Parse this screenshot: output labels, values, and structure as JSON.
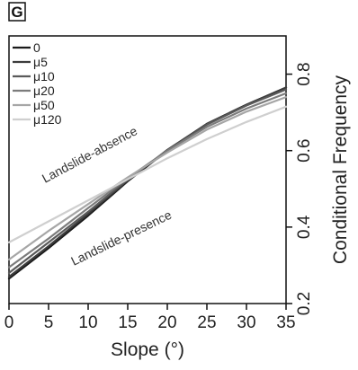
{
  "chart_data": {
    "type": "line",
    "panel_label": "G",
    "xlabel": "Slope (°)",
    "ylabel": "Conditional Frequency",
    "xlim": [
      0,
      35
    ],
    "ylim": [
      0.2,
      0.9
    ],
    "xticks": [
      0,
      5,
      10,
      15,
      20,
      25,
      30,
      35
    ],
    "yticks": [
      0.2,
      0.4,
      0.6,
      0.8
    ],
    "ytick_labels": [
      "0.2",
      "0.4",
      "0.6",
      "0.8"
    ],
    "grid": false,
    "legend_position": "top-left",
    "annotations": [
      "Landslide-absence",
      "Landslide-presence"
    ],
    "series": [
      {
        "name": "0",
        "color": "#1a1a1a",
        "x": [
          0,
          5,
          10,
          15,
          20,
          25,
          30,
          35
        ],
        "y": [
          0.265,
          0.345,
          0.43,
          0.52,
          0.6,
          0.67,
          0.72,
          0.765
        ]
      },
      {
        "name": "μ5",
        "color": "#3c3c3c",
        "x": [
          0,
          5,
          10,
          15,
          20,
          25,
          30,
          35
        ],
        "y": [
          0.27,
          0.35,
          0.435,
          0.522,
          0.602,
          0.67,
          0.72,
          0.765
        ]
      },
      {
        "name": "μ10",
        "color": "#5a5a5a",
        "x": [
          0,
          5,
          10,
          15,
          20,
          25,
          30,
          35
        ],
        "y": [
          0.28,
          0.36,
          0.44,
          0.525,
          0.6,
          0.668,
          0.718,
          0.76
        ]
      },
      {
        "name": "μ20",
        "color": "#7c7c7c",
        "x": [
          0,
          5,
          10,
          15,
          20,
          25,
          30,
          35
        ],
        "y": [
          0.295,
          0.37,
          0.45,
          0.528,
          0.6,
          0.662,
          0.71,
          0.75
        ]
      },
      {
        "name": "μ50",
        "color": "#a6a6a6",
        "x": [
          0,
          5,
          10,
          15,
          20,
          25,
          30,
          35
        ],
        "y": [
          0.315,
          0.39,
          0.46,
          0.53,
          0.595,
          0.655,
          0.702,
          0.74
        ]
      },
      {
        "name": "μ120",
        "color": "#cfcfcf",
        "x": [
          0,
          5,
          10,
          15,
          20,
          25,
          30,
          35
        ],
        "y": [
          0.36,
          0.415,
          0.47,
          0.525,
          0.58,
          0.63,
          0.675,
          0.715
        ]
      }
    ]
  }
}
